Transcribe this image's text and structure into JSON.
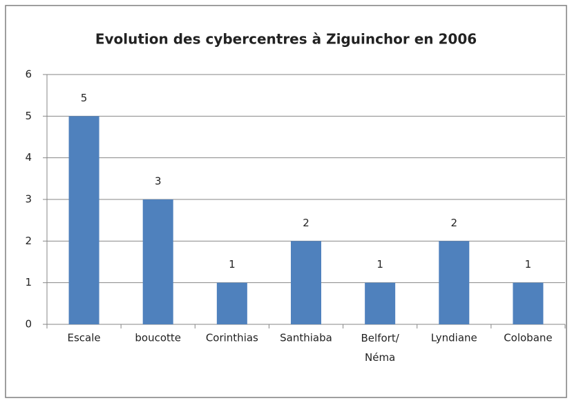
{
  "chart_data": {
    "type": "bar",
    "title": "Evolution des cybercentres à Ziguinchor en 2006",
    "categories": [
      "Escale",
      "boucotte",
      "Corinthias",
      "Santhiaba",
      "Belfort/ Néma",
      "Lyndiane",
      "Colobane"
    ],
    "values": [
      5,
      3,
      1,
      2,
      1,
      2,
      1
    ],
    "color": "#4f81bd",
    "ylim": [
      0,
      6
    ],
    "yticks": [
      0,
      1,
      2,
      3,
      4,
      5,
      6
    ],
    "grid": true,
    "data_labels": true
  }
}
